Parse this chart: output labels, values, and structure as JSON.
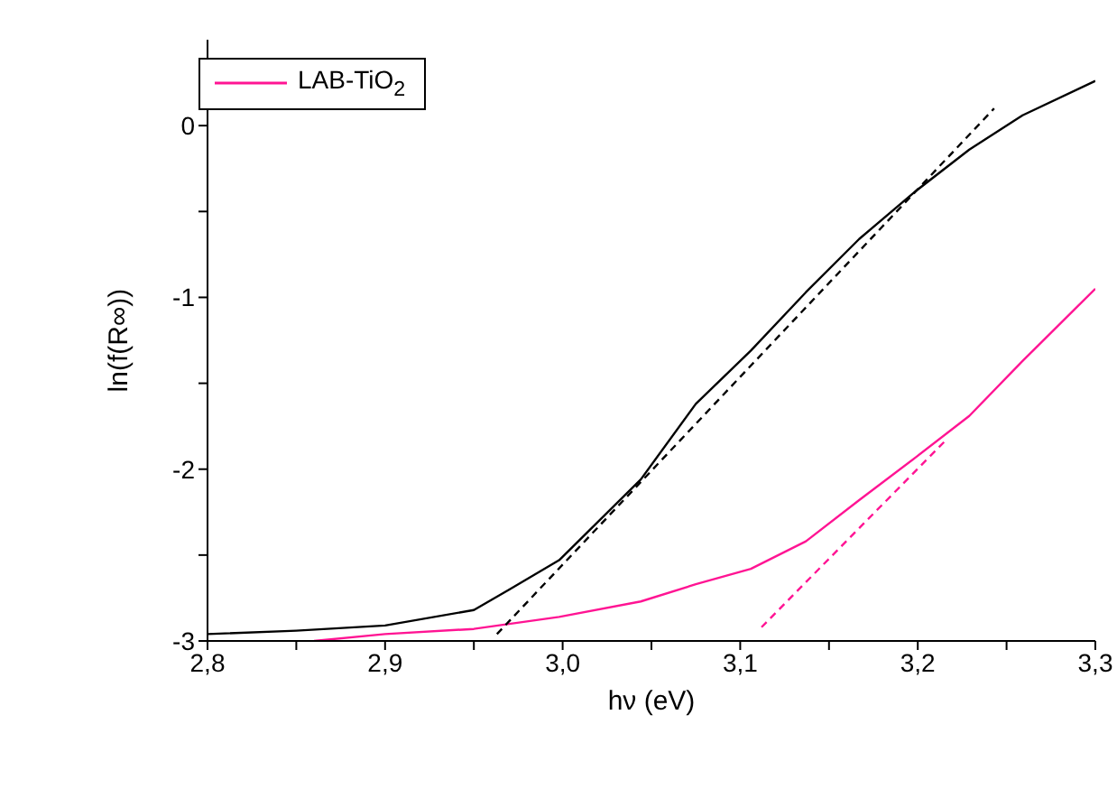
{
  "chart_data": {
    "type": "line",
    "xlabel": "hν (eV)",
    "ylabel": "ln(f(R∞))",
    "xlim": [
      2.8,
      3.3
    ],
    "ylim": [
      -3,
      0.5
    ],
    "xticks": [
      {
        "value": 2.8,
        "label": "2,8"
      },
      {
        "value": 2.85,
        "label": null
      },
      {
        "value": 2.9,
        "label": "2,9"
      },
      {
        "value": 2.95,
        "label": null
      },
      {
        "value": 3.0,
        "label": "3,0"
      },
      {
        "value": 3.05,
        "label": null
      },
      {
        "value": 3.1,
        "label": "3,1"
      },
      {
        "value": 3.15,
        "label": null
      },
      {
        "value": 3.2,
        "label": "3,2"
      },
      {
        "value": 3.25,
        "label": null
      },
      {
        "value": 3.3,
        "label": "3,3"
      }
    ],
    "yticks": [
      -3,
      {
        "value": -2.5,
        "label": null
      },
      -2,
      {
        "value": -1.5,
        "label": null
      },
      -1,
      {
        "value": -0.5,
        "label": null
      },
      0
    ],
    "legend": "top left",
    "marker": "none",
    "series": [
      {
        "color": "#000000",
        "line_style": "solid",
        "x": [
          2.8,
          2.85,
          2.9,
          2.95,
          2.97,
          2.998,
          3.044,
          3.075,
          3.106,
          3.137,
          3.167,
          3.199,
          3.229,
          3.259,
          3.3
        ],
        "values": [
          -2.96,
          -2.94,
          -2.91,
          -2.82,
          -2.7,
          -2.53,
          -2.06,
          -1.62,
          -1.31,
          -0.97,
          -0.66,
          -0.38,
          -0.14,
          0.06,
          0.26
        ]
      },
      {
        "name": "LAB-TiO$_{2}$",
        "color": "#ff1493",
        "line_style": "solid",
        "x": [
          2.86,
          2.9,
          2.95,
          2.998,
          3.044,
          3.075,
          3.106,
          3.137,
          3.167,
          3.199,
          3.229,
          3.259,
          3.3
        ],
        "values": [
          -3.0,
          -2.96,
          -2.93,
          -2.86,
          -2.77,
          -2.67,
          -2.58,
          -2.42,
          -2.18,
          -1.93,
          -1.69,
          -1.37,
          -0.95
        ]
      },
      {
        "color": "#000000",
        "line_style": "dashed",
        "x": [
          2.963,
          3.243
        ],
        "values": [
          -2.96,
          0.1
        ]
      },
      {
        "color": "#ff1493",
        "line_style": "dashed",
        "x": [
          3.112,
          3.215
        ],
        "values": [
          -2.92,
          -1.84
        ]
      }
    ]
  }
}
